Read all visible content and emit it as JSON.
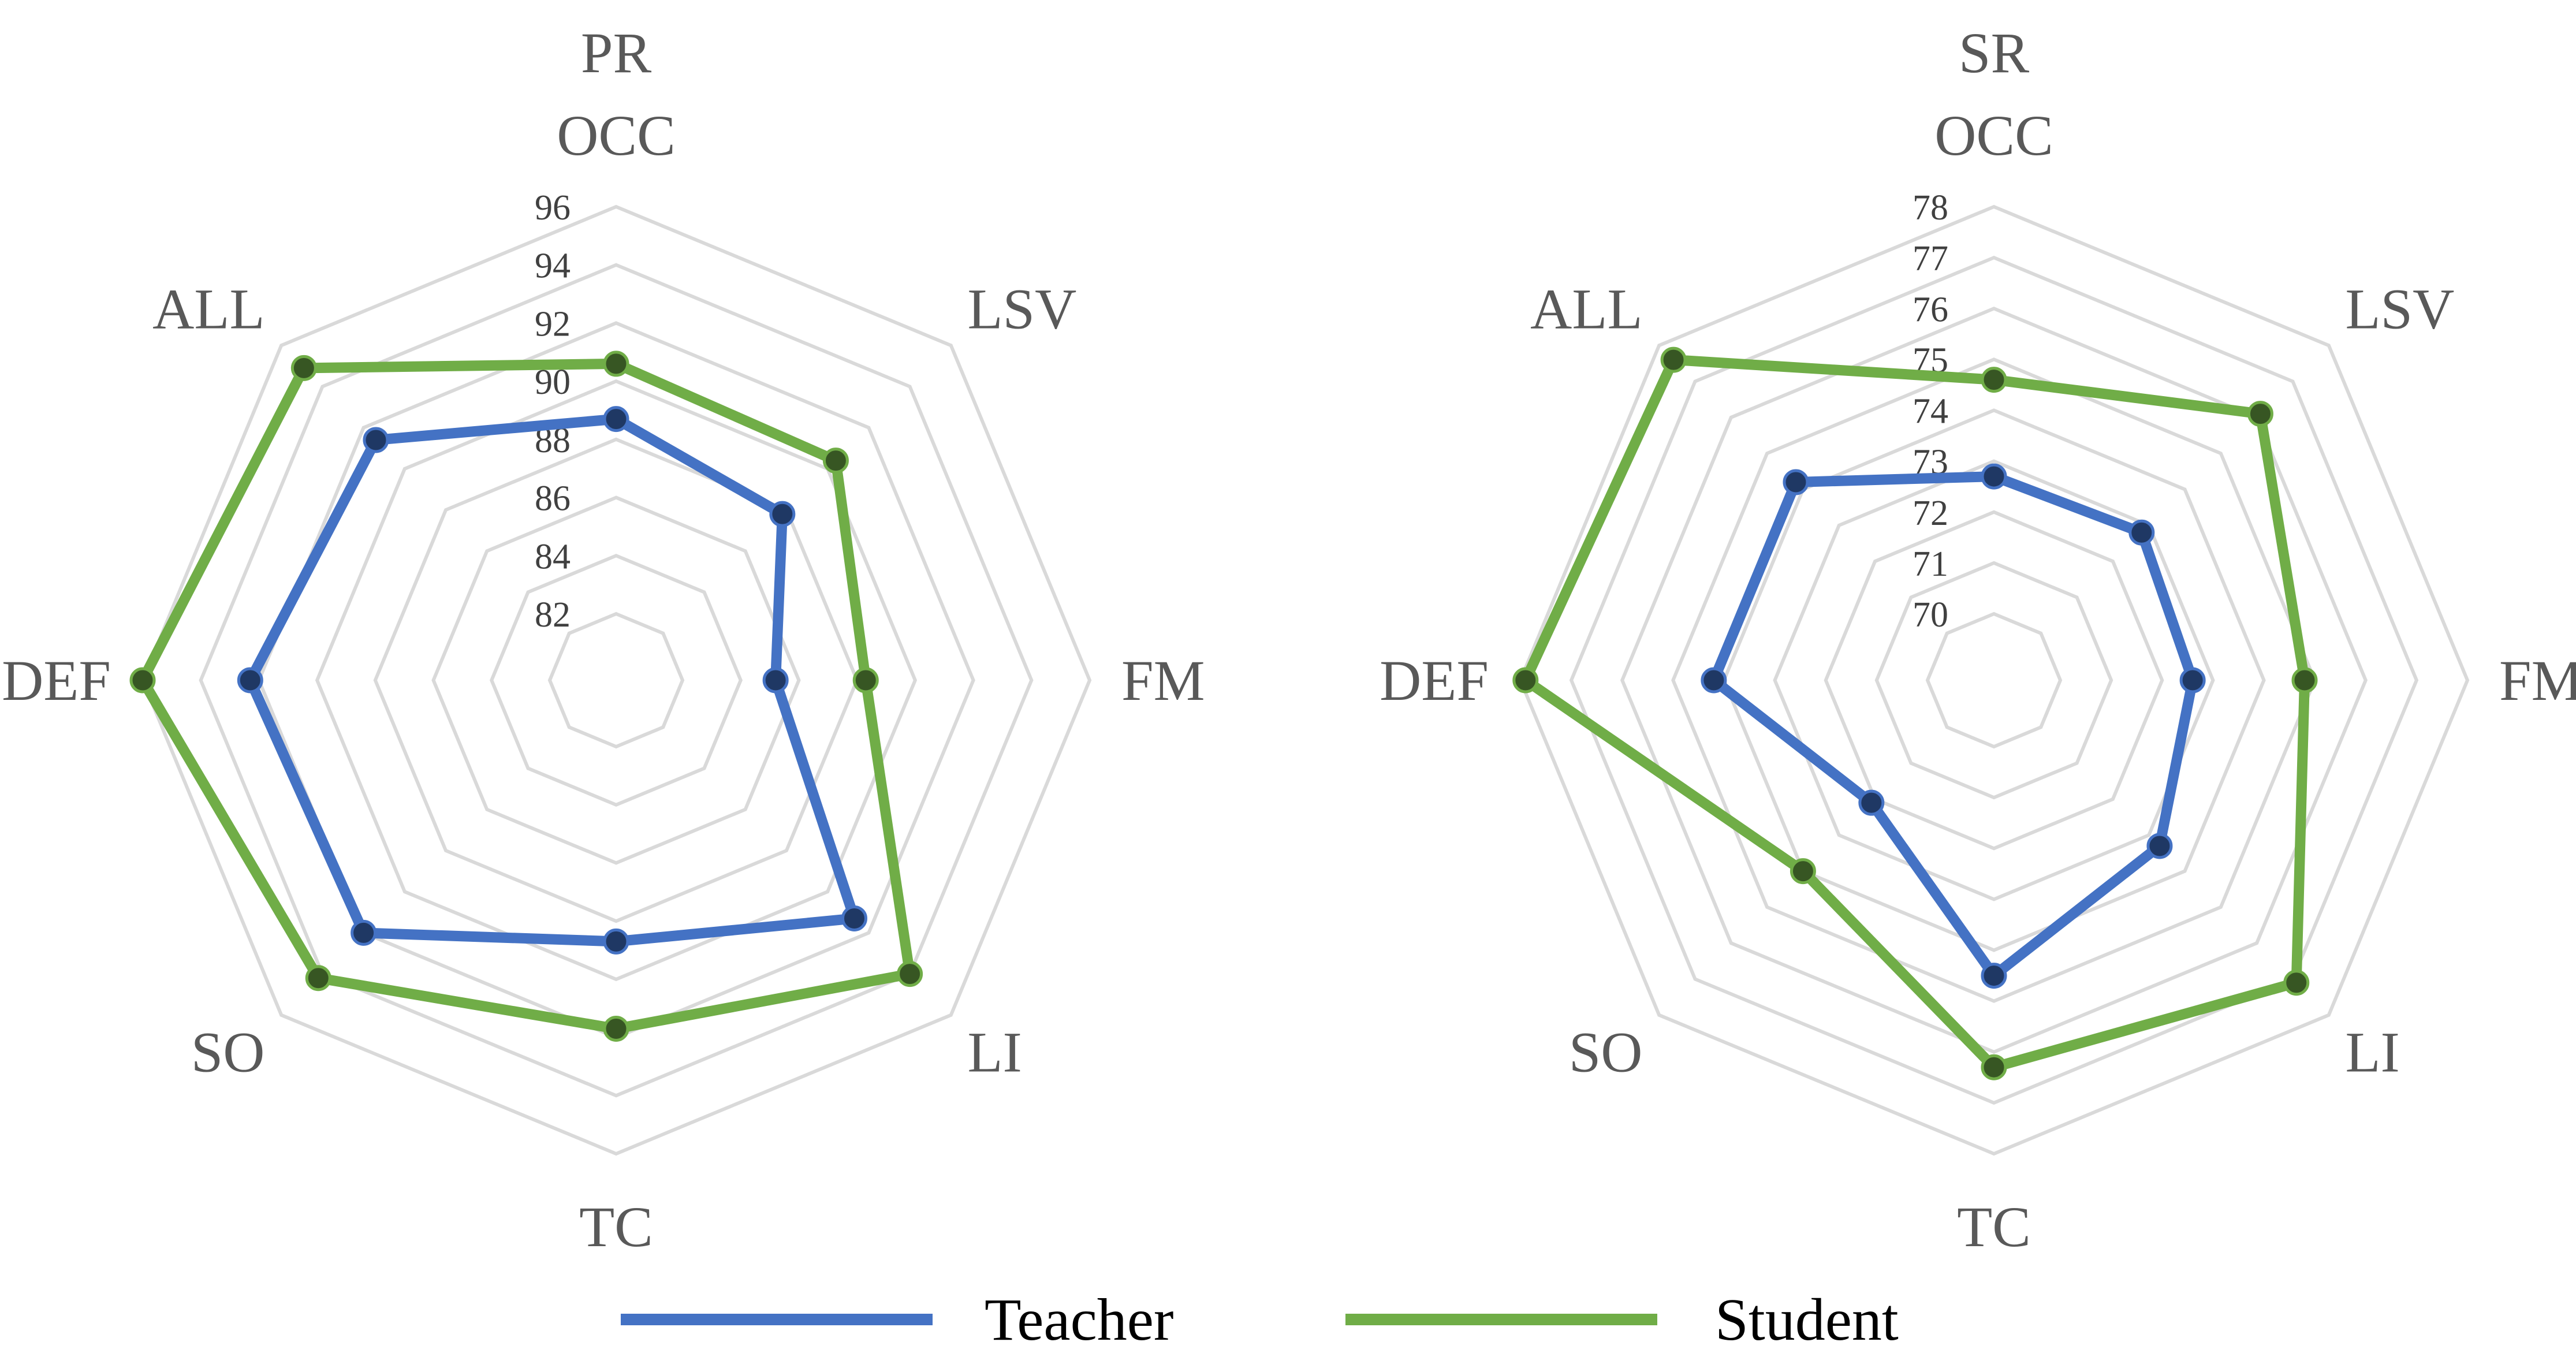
{
  "chart_data": [
    {
      "type": "radar",
      "title": "PR",
      "axes": [
        "OCC",
        "LSV",
        "FM",
        "LI",
        "TC",
        "SO",
        "DEF",
        "ALL"
      ],
      "ticks": [
        82,
        84,
        86,
        88,
        90,
        92,
        94,
        96
      ],
      "range": [
        82,
        96
      ],
      "series": [
        {
          "name": "Teacher",
          "color": "#4472c4",
          "marker": "#1f3864",
          "values": [
            88.7,
            87.8,
            85.2,
            91.3,
            88.7,
            92.0,
            92.3,
            91.4
          ]
        },
        {
          "name": "Student",
          "color": "#70ad47",
          "marker": "#375623",
          "values": [
            90.6,
            90.4,
            88.3,
            94.0,
            91.7,
            94.2,
            96.0,
            94.9
          ]
        }
      ]
    },
    {
      "type": "radar",
      "title": "SR",
      "axes": [
        "OCC",
        "LSV",
        "FM",
        "LI",
        "TC",
        "SO",
        "DEF",
        "ALL"
      ],
      "ticks": [
        70,
        71,
        72,
        73,
        74,
        75,
        76,
        77,
        78
      ],
      "range": [
        70,
        78
      ],
      "series": [
        {
          "name": "Teacher",
          "color": "#4472c4",
          "marker": "#1f3864",
          "values": [
            72.7,
            72.8,
            72.6,
            73.3,
            74.5,
            72.1,
            74.2,
            74.2
          ]
        },
        {
          "name": "Student",
          "color": "#70ad47",
          "marker": "#375623",
          "values": [
            74.6,
            76.1,
            74.8,
            77.1,
            76.3,
            74.0,
            77.9,
            77.6
          ]
        }
      ]
    }
  ],
  "legend": {
    "position": "bottom",
    "items": [
      {
        "name": "Teacher",
        "color": "#4472c4"
      },
      {
        "name": "Student",
        "color": "#70ad47"
      }
    ]
  }
}
